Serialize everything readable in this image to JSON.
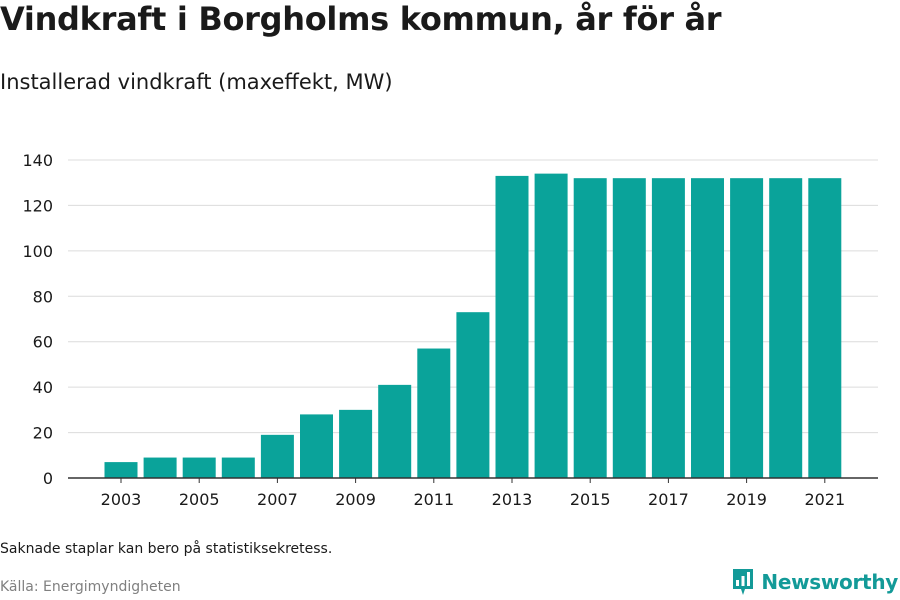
{
  "title": "Vindkraft i Borgholms kommun, år för år",
  "subtitle": "Installerad vindkraft (maxeffekt, MW)",
  "note": "Saknade staplar kan bero på statistiksekretess.",
  "source": "Källa: Energimyndigheten",
  "brand": {
    "name": "Newsworthy",
    "icon": "newsworthy-logo-icon",
    "color": "#139a98"
  },
  "colors": {
    "bar": "#0aa39a",
    "grid": "#dcdcdc",
    "axis": "#333333"
  },
  "chart_data": {
    "type": "bar",
    "title": "Vindkraft i Borgholms kommun, år för år",
    "subtitle": "Installerad vindkraft (maxeffekt, MW)",
    "xlabel": "",
    "ylabel": "",
    "categories": [
      "2003",
      "2004",
      "2005",
      "2006",
      "2007",
      "2008",
      "2009",
      "2010",
      "2011",
      "2012",
      "2013",
      "2014",
      "2015",
      "2016",
      "2017",
      "2018",
      "2019",
      "2020",
      "2021"
    ],
    "values": [
      7,
      9,
      9,
      9,
      19,
      28,
      30,
      41,
      57,
      73,
      133,
      134,
      132,
      132,
      132,
      132,
      132,
      132,
      132
    ],
    "ylim": [
      0,
      140
    ],
    "yticks": [
      0,
      20,
      40,
      60,
      80,
      100,
      120,
      140
    ],
    "xtick_labels": [
      "2003",
      "2005",
      "2007",
      "2009",
      "2011",
      "2013",
      "2015",
      "2017",
      "2019",
      "2021"
    ],
    "grid": true,
    "legend": "none"
  }
}
